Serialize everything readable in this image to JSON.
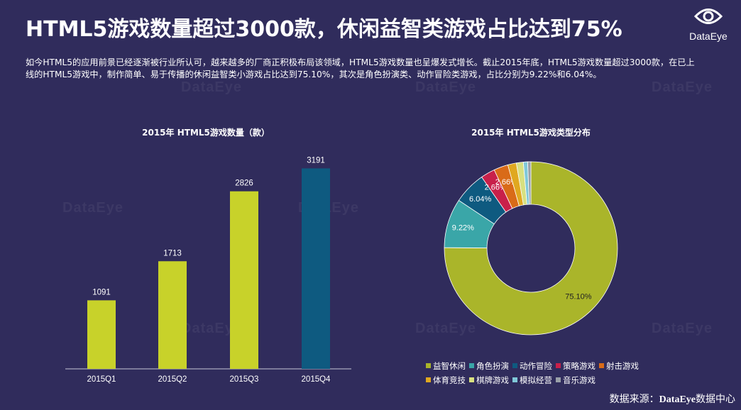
{
  "page": {
    "title": "HTML5游戏数量超过3000款，休闲益智类游戏占比达到75%",
    "description": "如今HTML5的应用前景已经逐渐被行业所认可，越来越多的厂商正积极布局该领域，HTML5游戏数量也呈爆发式增长。截止2015年底，HTML5游戏数量超过3000款，在已上线的HTML5游戏中，制作简单、易于传播的休闲益智类小游戏占比达到75.10%，其次是角色扮演类、动作冒险类游戏，占比分别为9.22%和6.04%。",
    "logo_text": "DataEye",
    "watermark_text": "DataEye",
    "source_label": "数据来源：",
    "source_brand": "DataEye",
    "source_suffix": "数据中心"
  },
  "chart_data": [
    {
      "type": "bar",
      "title": "2015年 HTML5游戏数量（款）",
      "categories": [
        "2015Q1",
        "2015Q2",
        "2015Q3",
        "2015Q4"
      ],
      "values": [
        1091,
        1713,
        2826,
        3191
      ],
      "value_labels": [
        "1091",
        "1713",
        "2826",
        "3191"
      ],
      "colors": [
        "#c8d22a",
        "#c8d22a",
        "#c8d22a",
        "#0e5a80"
      ],
      "ylim": [
        0,
        3500
      ],
      "grid": false,
      "legend": "none"
    },
    {
      "type": "pie",
      "variant": "donut",
      "title": "2015年 HTML5游戏类型分布",
      "categories": [
        "益智休闲",
        "角色扮演",
        "动作冒险",
        "策略游戏",
        "射击游戏",
        "体育竞技",
        "棋牌游戏",
        "模拟经营",
        "音乐游戏"
      ],
      "values": [
        75.1,
        9.22,
        6.04,
        2.66,
        2.66,
        1.6,
        1.3,
        0.8,
        0.6
      ],
      "value_labels": [
        "75.10%",
        "9.22%",
        "6.04%",
        "2.66%",
        "2.66%",
        "",
        "",
        "",
        ""
      ],
      "colors": [
        "#aab52a",
        "#3aa6a8",
        "#0e5a80",
        "#c8204a",
        "#d96b18",
        "#e0a820",
        "#d8e080",
        "#80c8d8",
        "#9aa0a8"
      ],
      "legend": "bottom"
    }
  ]
}
